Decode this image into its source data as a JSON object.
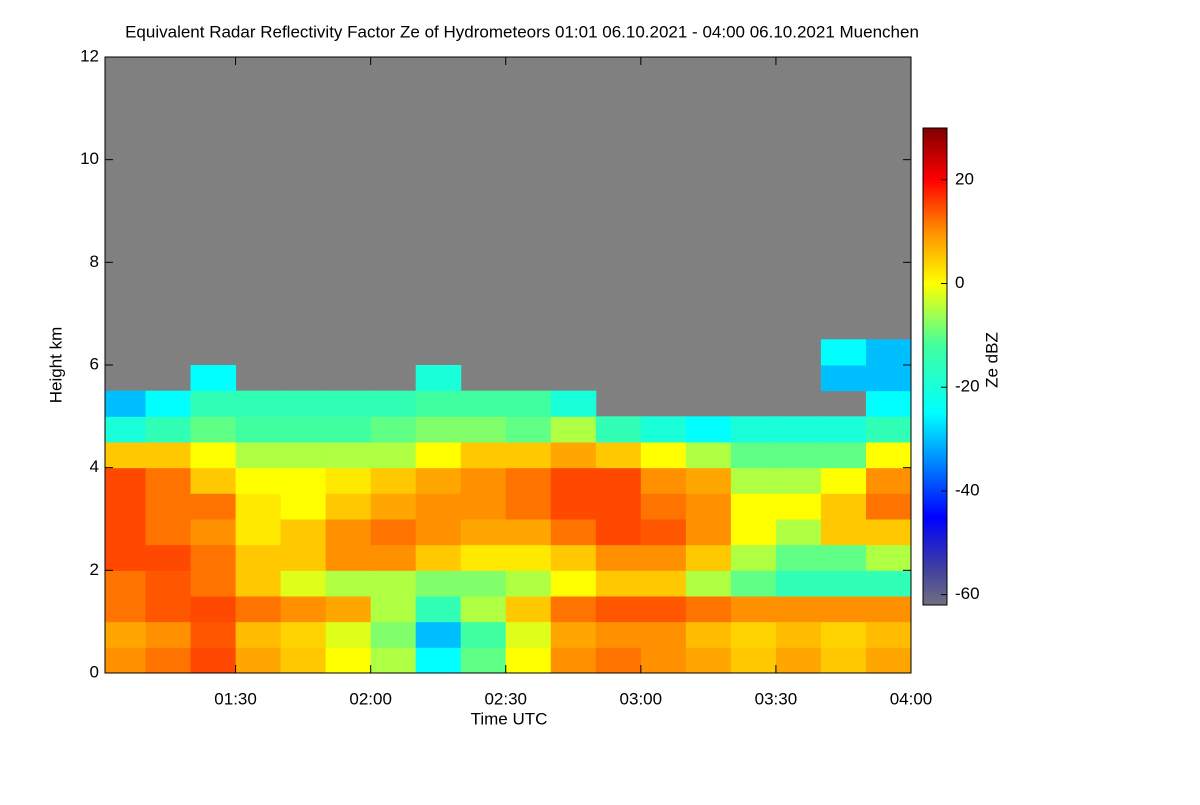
{
  "chart_data": {
    "type": "heatmap",
    "title": "Equivalent Radar Reflectivity Factor Ze of Hydrometeors   01:01 06.10.2021 - 04:00 06.10.2021 Muenchen",
    "x_label": "Time UTC",
    "y_label": "Height km",
    "colorbar_label": "Ze dBZ",
    "xlim": [
      61,
      240
    ],
    "xticks": [
      {
        "value": 90,
        "label": "01:30"
      },
      {
        "value": 120,
        "label": "02:00"
      },
      {
        "value": 150,
        "label": "02:30"
      },
      {
        "value": 180,
        "label": "03:00"
      },
      {
        "value": 210,
        "label": "03:30"
      },
      {
        "value": 240,
        "label": "04:00"
      }
    ],
    "ylim": [
      0,
      12
    ],
    "yticks": [
      0,
      2,
      4,
      6,
      8,
      10,
      12
    ],
    "zlim": [
      -62,
      30
    ],
    "zticks": [
      -60,
      -40,
      -20,
      0,
      20
    ],
    "missing_color": "#808080",
    "colorscale": [
      [
        -62,
        "#707080"
      ],
      [
        -55,
        "#4040a0"
      ],
      [
        -45,
        "#0000ff"
      ],
      [
        -25,
        "#00ffff"
      ],
      [
        -12,
        "#40ffa0"
      ],
      [
        0,
        "#ffff00"
      ],
      [
        10,
        "#ff9000"
      ],
      [
        20,
        "#ff0000"
      ],
      [
        30,
        "#800000"
      ]
    ],
    "x_bins": [
      61,
      70,
      80,
      90,
      100,
      110,
      120,
      130,
      140,
      150,
      160,
      170,
      180,
      190,
      200,
      210,
      220,
      230,
      240
    ],
    "y_bins": [
      0,
      0.5,
      1,
      1.5,
      2,
      2.5,
      3,
      3.5,
      4,
      4.5,
      5,
      5.5,
      6,
      6.5
    ],
    "values": [
      [
        10,
        12,
        15,
        8,
        5,
        0,
        -5,
        -25,
        -10,
        0,
        10,
        12,
        10,
        8,
        5,
        8,
        5,
        8
      ],
      [
        8,
        10,
        14,
        6,
        4,
        -2,
        -8,
        -30,
        -12,
        -2,
        8,
        10,
        10,
        6,
        4,
        6,
        4,
        6
      ],
      [
        12,
        14,
        15,
        12,
        10,
        8,
        -5,
        -15,
        -5,
        5,
        12,
        14,
        14,
        12,
        10,
        10,
        10,
        10
      ],
      [
        12,
        14,
        12,
        5,
        -2,
        -5,
        -5,
        -8,
        -8,
        -5,
        0,
        5,
        5,
        -5,
        -10,
        -15,
        -15,
        -15
      ],
      [
        15,
        15,
        12,
        5,
        5,
        10,
        10,
        5,
        2,
        2,
        5,
        10,
        10,
        5,
        -5,
        -10,
        -10,
        -5
      ],
      [
        15,
        12,
        10,
        2,
        5,
        10,
        12,
        10,
        8,
        8,
        12,
        15,
        14,
        10,
        0,
        -5,
        5,
        5
      ],
      [
        15,
        12,
        12,
        2,
        0,
        5,
        8,
        10,
        10,
        12,
        15,
        15,
        12,
        10,
        0,
        0,
        5,
        12
      ],
      [
        15,
        12,
        5,
        0,
        0,
        2,
        5,
        8,
        10,
        12,
        15,
        15,
        10,
        8,
        -5,
        -5,
        0,
        10
      ],
      [
        5,
        5,
        0,
        -5,
        -5,
        -5,
        -5,
        0,
        5,
        5,
        8,
        5,
        0,
        -5,
        -10,
        -10,
        -10,
        0
      ],
      [
        -20,
        -15,
        -10,
        -12,
        -12,
        -12,
        -10,
        -8,
        -8,
        -10,
        -5,
        -15,
        -20,
        -25,
        -20,
        -20,
        -20,
        -15
      ],
      [
        -30,
        -25,
        -15,
        -15,
        -15,
        -15,
        -15,
        -12,
        -12,
        -12,
        -20,
        null,
        null,
        null,
        null,
        null,
        null,
        -25
      ],
      [
        null,
        null,
        -25,
        null,
        null,
        null,
        null,
        -20,
        null,
        null,
        null,
        null,
        null,
        null,
        null,
        null,
        -30,
        -30
      ],
      [
        null,
        null,
        null,
        null,
        null,
        null,
        null,
        null,
        null,
        null,
        null,
        null,
        null,
        null,
        null,
        null,
        -25,
        -30
      ]
    ]
  }
}
